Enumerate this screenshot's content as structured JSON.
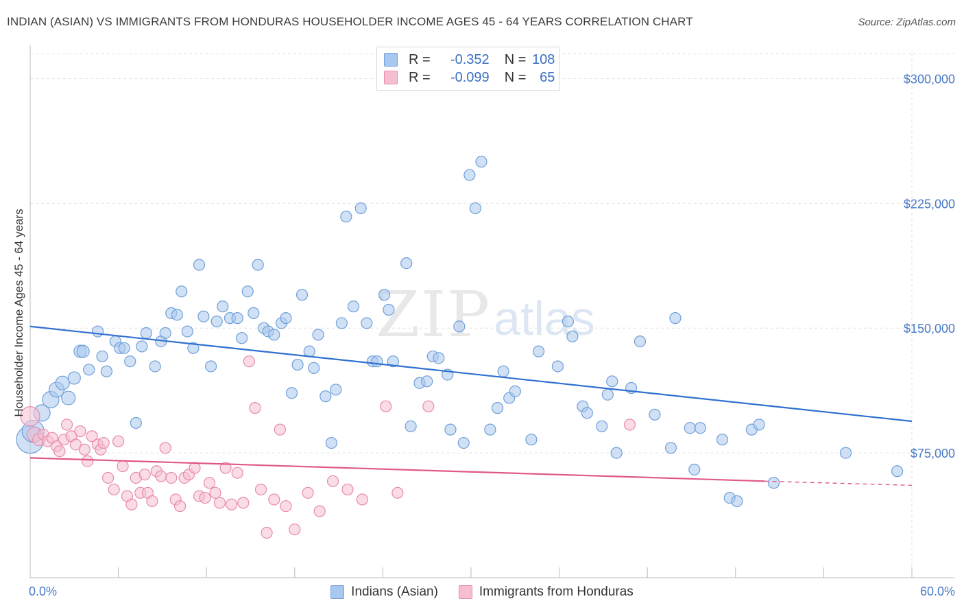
{
  "title": "INDIAN (ASIAN) VS IMMIGRANTS FROM HONDURAS HOUSEHOLDER INCOME AGES 45 - 64 YEARS CORRELATION CHART",
  "source": "Source: ZipAtlas.com",
  "watermark": {
    "zip": "ZIP",
    "atlas": "atlas"
  },
  "legend": {
    "rows": [
      {
        "r_label": "R =",
        "r_value": "-0.352",
        "n_label": "N =",
        "n_value": "108",
        "color": "#a9c8ef",
        "border": "#6f9fd8"
      },
      {
        "r_label": "R =",
        "r_value": "-0.099",
        "n_label": "N =",
        "n_value": "65",
        "color": "#f6bfd1",
        "border": "#e88aab"
      }
    ]
  },
  "bottom_legend": [
    {
      "label": "Indians (Asian)",
      "color": "#a9c8ef",
      "border": "#6f9fd8"
    },
    {
      "label": "Immigrants from Honduras",
      "color": "#f6bfd1",
      "border": "#e88aab"
    }
  ],
  "chart_data": {
    "type": "scatter",
    "ylabel": "Householder Income Ages 45 - 64 years",
    "xlim": [
      0,
      60
    ],
    "ylim": [
      0,
      315000
    ],
    "x_tick_labels": [
      "0.0%",
      "60.0%"
    ],
    "y_ticks": [
      {
        "value": 300000,
        "label": "$300,000"
      },
      {
        "value": 225000,
        "label": "$225,000"
      },
      {
        "value": 150000,
        "label": "$150,000"
      },
      {
        "value": 75000,
        "label": "$75,000"
      }
    ],
    "grid": true,
    "legend_position": "top-center",
    "series": [
      {
        "name": "Indians (Asian)",
        "color": "#6f9fd8",
        "fill": "#a9c8ef",
        "trend": {
          "x": [
            0,
            60
          ],
          "y": [
            151000,
            94000
          ],
          "color": "#2f6fd0"
        },
        "points": [
          [
            0.0,
            83000,
            20
          ],
          [
            0.2,
            88000,
            16
          ],
          [
            0.8,
            99000,
            12
          ],
          [
            1.4,
            107000,
            12
          ],
          [
            1.8,
            113000,
            11
          ],
          [
            2.2,
            117000,
            10
          ],
          [
            2.6,
            108000,
            10
          ],
          [
            3.0,
            120000,
            9
          ],
          [
            3.4,
            136000,
            9
          ],
          [
            3.6,
            136000,
            9
          ],
          [
            4.0,
            125000,
            8
          ],
          [
            4.6,
            148000,
            8
          ],
          [
            4.9,
            133000,
            8
          ],
          [
            5.2,
            124000,
            8
          ],
          [
            5.8,
            142000,
            8
          ],
          [
            6.1,
            138000,
            8
          ],
          [
            6.4,
            138000,
            8
          ],
          [
            6.8,
            130000,
            8
          ],
          [
            7.2,
            93000,
            8
          ],
          [
            7.6,
            139000,
            8
          ],
          [
            7.9,
            147000,
            8
          ],
          [
            8.5,
            127000,
            8
          ],
          [
            8.9,
            142000,
            8
          ],
          [
            9.2,
            147000,
            8
          ],
          [
            9.6,
            159000,
            8
          ],
          [
            10.0,
            158000,
            8
          ],
          [
            10.3,
            172000,
            8
          ],
          [
            10.7,
            148000,
            8
          ],
          [
            11.1,
            138000,
            8
          ],
          [
            11.5,
            188000,
            8
          ],
          [
            11.8,
            157000,
            8
          ],
          [
            12.3,
            127000,
            8
          ],
          [
            12.7,
            154000,
            8
          ],
          [
            13.1,
            163000,
            8
          ],
          [
            13.6,
            156000,
            8
          ],
          [
            14.1,
            156000,
            8
          ],
          [
            14.4,
            144000,
            8
          ],
          [
            14.8,
            172000,
            8
          ],
          [
            15.2,
            159000,
            8
          ],
          [
            15.5,
            188000,
            8
          ],
          [
            15.9,
            150000,
            8
          ],
          [
            16.2,
            148000,
            8
          ],
          [
            16.6,
            146000,
            8
          ],
          [
            17.1,
            153000,
            8
          ],
          [
            17.4,
            156000,
            8
          ],
          [
            17.8,
            111000,
            8
          ],
          [
            18.2,
            128000,
            8
          ],
          [
            18.5,
            170000,
            8
          ],
          [
            19.0,
            136000,
            8
          ],
          [
            19.3,
            126000,
            8
          ],
          [
            19.6,
            146000,
            8
          ],
          [
            20.1,
            109000,
            8
          ],
          [
            20.5,
            81000,
            8
          ],
          [
            20.8,
            113000,
            8
          ],
          [
            21.2,
            153000,
            8
          ],
          [
            21.5,
            217000,
            8
          ],
          [
            22.0,
            163000,
            8
          ],
          [
            22.5,
            222000,
            8
          ],
          [
            22.9,
            153000,
            8
          ],
          [
            23.3,
            130000,
            8
          ],
          [
            23.6,
            130000,
            8
          ],
          [
            24.1,
            170000,
            8
          ],
          [
            24.4,
            161000,
            8
          ],
          [
            24.7,
            130000,
            8
          ],
          [
            25.6,
            189000,
            8
          ],
          [
            25.9,
            91000,
            8
          ],
          [
            26.5,
            117000,
            8
          ],
          [
            27.0,
            118000,
            8
          ],
          [
            27.4,
            133000,
            8
          ],
          [
            27.8,
            132000,
            8
          ],
          [
            28.4,
            122000,
            8
          ],
          [
            28.6,
            89000,
            8
          ],
          [
            29.2,
            151000,
            8
          ],
          [
            29.5,
            81000,
            8
          ],
          [
            29.9,
            242000,
            8
          ],
          [
            30.3,
            222000,
            8
          ],
          [
            30.7,
            250000,
            8
          ],
          [
            31.3,
            89000,
            8
          ],
          [
            31.8,
            102000,
            8
          ],
          [
            32.2,
            124000,
            8
          ],
          [
            32.6,
            108000,
            8
          ],
          [
            33.0,
            112000,
            8
          ],
          [
            34.1,
            83000,
            8
          ],
          [
            34.6,
            136000,
            8
          ],
          [
            35.9,
            127000,
            8
          ],
          [
            36.6,
            154000,
            8
          ],
          [
            36.9,
            145000,
            8
          ],
          [
            37.6,
            103000,
            8
          ],
          [
            37.9,
            99000,
            8
          ],
          [
            38.9,
            91000,
            8
          ],
          [
            39.3,
            110000,
            8
          ],
          [
            39.6,
            118000,
            8
          ],
          [
            39.9,
            75000,
            8
          ],
          [
            40.9,
            114000,
            8
          ],
          [
            41.5,
            142000,
            8
          ],
          [
            42.5,
            98000,
            8
          ],
          [
            43.6,
            78000,
            8
          ],
          [
            43.9,
            156000,
            8
          ],
          [
            44.9,
            90000,
            8
          ],
          [
            45.2,
            65000,
            8
          ],
          [
            45.6,
            90000,
            8
          ],
          [
            47.1,
            83000,
            8
          ],
          [
            47.6,
            48000,
            8
          ],
          [
            48.1,
            46000,
            8
          ],
          [
            49.1,
            89000,
            8
          ],
          [
            49.6,
            92000,
            8
          ],
          [
            50.6,
            57000,
            8
          ],
          [
            55.5,
            75000,
            8
          ],
          [
            59.0,
            64000,
            8
          ]
        ]
      },
      {
        "name": "Immigrants from Honduras",
        "color": "#e88aab",
        "fill": "#f6bfd1",
        "trend": {
          "x": [
            0,
            50
          ],
          "y": [
            72000,
            58000
          ],
          "color": "#e0578a",
          "dashed_to_x": 60,
          "dashed_to_y": 55500
        },
        "points": [
          [
            0.0,
            97000,
            14
          ],
          [
            0.3,
            86000,
            11
          ],
          [
            0.6,
            83000,
            9
          ],
          [
            0.9,
            86000,
            8
          ],
          [
            1.2,
            82000,
            8
          ],
          [
            1.5,
            84000,
            8
          ],
          [
            1.8,
            79000,
            8
          ],
          [
            2.0,
            76000,
            8
          ],
          [
            2.3,
            83000,
            8
          ],
          [
            2.5,
            92000,
            8
          ],
          [
            2.8,
            85000,
            8
          ],
          [
            3.1,
            80000,
            8
          ],
          [
            3.4,
            88000,
            8
          ],
          [
            3.7,
            77000,
            8
          ],
          [
            3.9,
            70000,
            8
          ],
          [
            4.2,
            85000,
            8
          ],
          [
            4.6,
            80000,
            8
          ],
          [
            4.8,
            77000,
            8
          ],
          [
            5.0,
            81000,
            8
          ],
          [
            5.3,
            60000,
            8
          ],
          [
            5.7,
            53000,
            8
          ],
          [
            6.0,
            82000,
            8
          ],
          [
            6.3,
            67000,
            8
          ],
          [
            6.6,
            49000,
            8
          ],
          [
            6.9,
            44000,
            8
          ],
          [
            7.2,
            60000,
            8
          ],
          [
            7.5,
            51000,
            8
          ],
          [
            7.8,
            62000,
            8
          ],
          [
            8.0,
            51000,
            8
          ],
          [
            8.3,
            46000,
            8
          ],
          [
            8.6,
            64000,
            8
          ],
          [
            8.9,
            61000,
            8
          ],
          [
            9.2,
            78000,
            8
          ],
          [
            9.6,
            60000,
            8
          ],
          [
            9.9,
            47000,
            8
          ],
          [
            10.2,
            43000,
            8
          ],
          [
            10.5,
            60000,
            8
          ],
          [
            10.8,
            62000,
            8
          ],
          [
            11.2,
            66000,
            8
          ],
          [
            11.5,
            49000,
            8
          ],
          [
            11.9,
            48000,
            8
          ],
          [
            12.2,
            57000,
            8
          ],
          [
            12.6,
            51000,
            8
          ],
          [
            12.9,
            45000,
            8
          ],
          [
            13.3,
            66000,
            8
          ],
          [
            13.7,
            44000,
            8
          ],
          [
            14.1,
            63000,
            8
          ],
          [
            14.5,
            45000,
            8
          ],
          [
            14.9,
            130000,
            8
          ],
          [
            15.3,
            102000,
            8
          ],
          [
            15.7,
            53000,
            8
          ],
          [
            16.1,
            27000,
            8
          ],
          [
            16.6,
            47000,
            8
          ],
          [
            17.0,
            89000,
            8
          ],
          [
            17.4,
            43000,
            8
          ],
          [
            18.0,
            29000,
            8
          ],
          [
            18.9,
            51000,
            8
          ],
          [
            19.7,
            40000,
            8
          ],
          [
            20.6,
            58000,
            8
          ],
          [
            21.6,
            53000,
            8
          ],
          [
            22.6,
            47000,
            8
          ],
          [
            24.2,
            103000,
            8
          ],
          [
            25.0,
            51000,
            8
          ],
          [
            27.1,
            103000,
            8
          ],
          [
            40.8,
            92000,
            8
          ]
        ]
      }
    ]
  }
}
